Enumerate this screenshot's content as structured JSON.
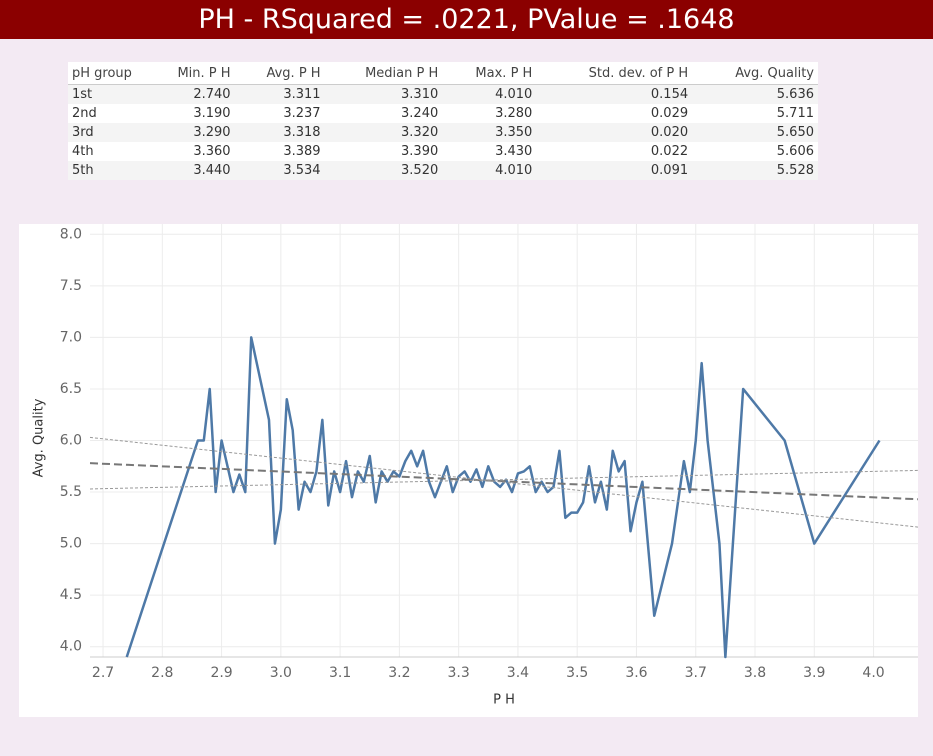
{
  "header": {
    "title": "PH  - RSquared = .0221, PValue = .1648"
  },
  "table": {
    "columns": [
      "pH group",
      "Min. P H",
      "Avg. P H",
      "Median P H",
      "Max. P H",
      "Std. dev. of P H",
      "Avg. Quality"
    ],
    "rows": [
      [
        "1st",
        "2.740",
        "3.311",
        "3.310",
        "4.010",
        "0.154",
        "5.636"
      ],
      [
        "2nd",
        "3.190",
        "3.237",
        "3.240",
        "3.280",
        "0.029",
        "5.711"
      ],
      [
        "3rd",
        "3.290",
        "3.318",
        "3.320",
        "3.350",
        "0.020",
        "5.650"
      ],
      [
        "4th",
        "3.360",
        "3.389",
        "3.390",
        "3.430",
        "0.022",
        "5.606"
      ],
      [
        "5th",
        "3.440",
        "3.534",
        "3.520",
        "4.010",
        "0.091",
        "5.528"
      ]
    ]
  },
  "chart_data": {
    "type": "line",
    "x_label": "P H",
    "y_label": "Avg. Quality",
    "xlim": [
      2.678,
      4.075
    ],
    "ylim": [
      3.9,
      8.1
    ],
    "xticks": [
      2.7,
      2.8,
      2.9,
      {
        "value": 3,
        "label": "3.0"
      },
      3.1,
      3.2,
      3.3,
      3.4,
      3.5,
      3.6,
      3.7,
      3.8,
      3.9,
      {
        "value": 4,
        "label": "4.0"
      }
    ],
    "yticks": [
      {
        "value": 4,
        "label": "4.0"
      },
      4.5,
      {
        "value": 5,
        "label": "5.0"
      },
      5.5,
      {
        "value": 6,
        "label": "6.0"
      },
      6.5,
      {
        "value": 7,
        "label": "7.0"
      },
      7.5,
      {
        "value": 8,
        "label": "8.0"
      }
    ],
    "grid": true,
    "x": [
      2.74,
      2.86,
      2.87,
      2.88,
      2.89,
      2.9,
      2.92,
      2.93,
      2.94,
      2.95,
      2.98,
      2.99,
      3.0,
      3.01,
      3.02,
      3.03,
      3.04,
      3.05,
      3.06,
      3.07,
      3.08,
      3.09,
      3.1,
      3.11,
      3.12,
      3.13,
      3.14,
      3.15,
      3.16,
      3.17,
      3.18,
      3.19,
      3.2,
      3.21,
      3.22,
      3.23,
      3.24,
      3.25,
      3.26,
      3.27,
      3.28,
      3.29,
      3.3,
      3.31,
      3.32,
      3.33,
      3.34,
      3.35,
      3.36,
      3.37,
      3.38,
      3.39,
      3.4,
      3.41,
      3.42,
      3.43,
      3.44,
      3.45,
      3.46,
      3.47,
      3.48,
      3.49,
      3.5,
      3.51,
      3.52,
      3.53,
      3.54,
      3.55,
      3.56,
      3.57,
      3.58,
      3.59,
      3.6,
      3.61,
      3.63,
      3.66,
      3.68,
      3.69,
      3.7,
      3.71,
      3.72,
      3.74,
      3.75,
      3.78,
      3.85,
      3.9,
      4.01
    ],
    "series": [
      {
        "color": "#4e79a7",
        "values": [
          3.9,
          6.0,
          6.0,
          6.5,
          5.5,
          6.0,
          5.5,
          5.67,
          5.5,
          7.0,
          6.2,
          5.0,
          5.33,
          6.4,
          6.1,
          5.33,
          5.6,
          5.5,
          5.7,
          6.2,
          5.37,
          5.7,
          5.5,
          5.8,
          5.45,
          5.7,
          5.6,
          5.85,
          5.4,
          5.7,
          5.6,
          5.7,
          5.65,
          5.8,
          5.9,
          5.75,
          5.9,
          5.6,
          5.45,
          5.6,
          5.75,
          5.5,
          5.65,
          5.7,
          5.6,
          5.72,
          5.55,
          5.75,
          5.6,
          5.55,
          5.62,
          5.5,
          5.68,
          5.7,
          5.75,
          5.5,
          5.6,
          5.5,
          5.55,
          5.9,
          5.25,
          5.3,
          5.3,
          5.4,
          5.75,
          5.4,
          5.6,
          5.33,
          5.9,
          5.7,
          5.8,
          5.12,
          5.4,
          5.6,
          4.3,
          5.0,
          5.8,
          5.5,
          6.0,
          6.75,
          6.0,
          5.0,
          3.9,
          6.5,
          6.0,
          5.0,
          6.0
        ]
      }
    ],
    "trend_lines": [
      {
        "x": [
          2.678,
          4.075
        ],
        "values": [
          5.78,
          5.43
        ],
        "color": "#777777",
        "dash": "8,4",
        "width": 2
      },
      {
        "x": [
          2.678,
          4.075
        ],
        "values": [
          6.03,
          5.16
        ],
        "color": "#999999",
        "dash": "3,2",
        "width": 1
      },
      {
        "x": [
          2.678,
          4.075
        ],
        "values": [
          5.53,
          5.71
        ],
        "color": "#999999",
        "dash": "3,2",
        "width": 1
      }
    ]
  }
}
